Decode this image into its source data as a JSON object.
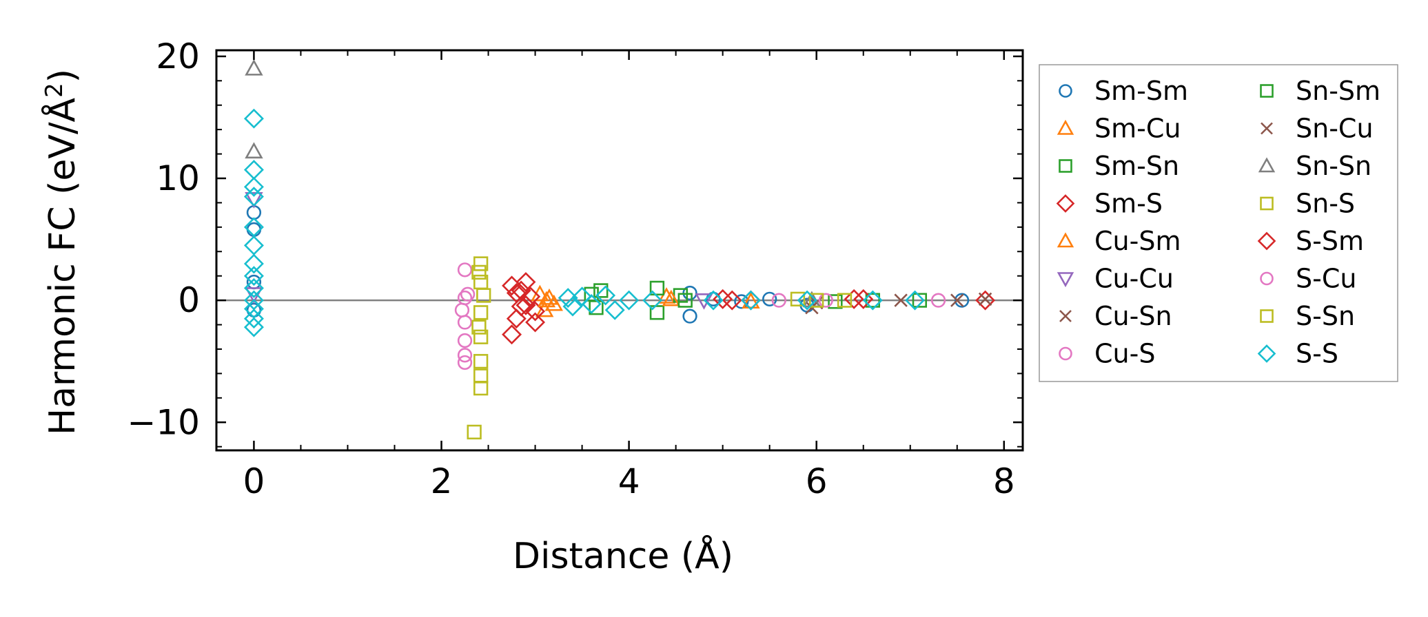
{
  "chart_data": {
    "type": "scatter",
    "xlabel": "Distance (Å)",
    "ylabel_main": "Harmonic FC (eV/Å",
    "ylabel_sup": "2",
    "ylabel_close": ")",
    "xlim": [
      -0.4,
      8.2
    ],
    "ylim": [
      -12.3,
      20.5
    ],
    "xticks": [
      0,
      2,
      4,
      6,
      8
    ],
    "xtick_labels": [
      "0",
      "2",
      "4",
      "6",
      "8"
    ],
    "yticks": [
      -10,
      0,
      10,
      20
    ],
    "ytick_labels": [
      "−10",
      "0",
      "10",
      "20"
    ],
    "reference_line_y": 0,
    "legend_position": "outside-right",
    "series": [
      {
        "name": "Sm-Sm",
        "color": "#1f77b4",
        "marker": "circle",
        "points": [
          [
            0,
            7.2
          ],
          [
            0,
            5.8
          ],
          [
            0,
            1.5
          ],
          [
            0,
            -0.8
          ],
          [
            4.65,
            0.6
          ],
          [
            4.65,
            -1.3
          ],
          [
            4.9,
            0.1
          ],
          [
            5.2,
            -0.1
          ],
          [
            5.5,
            0.1
          ],
          [
            5.9,
            -0.4
          ],
          [
            7.55,
            0.0
          ]
        ]
      },
      {
        "name": "Sm-Cu",
        "color": "#ff7f0e",
        "marker": "triangle-up",
        "points": [
          [
            3.05,
            0.5
          ],
          [
            3.1,
            -0.8
          ],
          [
            3.15,
            0.2
          ],
          [
            4.4,
            0.3
          ],
          [
            5.3,
            -0.1
          ]
        ]
      },
      {
        "name": "Sm-Sn",
        "color": "#2ca02c",
        "marker": "square",
        "points": [
          [
            3.6,
            0.5
          ],
          [
            3.65,
            -0.6
          ],
          [
            4.3,
            1.0
          ],
          [
            4.3,
            -1.0
          ],
          [
            4.55,
            0.4
          ],
          [
            6.2,
            -0.1
          ],
          [
            7.1,
            0.0
          ]
        ]
      },
      {
        "name": "Sm-S",
        "color": "#d62728",
        "marker": "diamond",
        "points": [
          [
            2.75,
            1.2
          ],
          [
            2.75,
            -2.8
          ],
          [
            2.8,
            -1.5
          ],
          [
            2.85,
            0.8
          ],
          [
            2.9,
            -0.4
          ],
          [
            2.95,
            0.3
          ],
          [
            3.0,
            -0.9
          ],
          [
            5.0,
            0.1
          ],
          [
            5.3,
            0.0
          ],
          [
            6.4,
            0.1
          ],
          [
            7.8,
            0.0
          ]
        ]
      },
      {
        "name": "Cu-Sm",
        "color": "#ff7f0e",
        "marker": "triangle-up",
        "points": [
          [
            3.12,
            0.0
          ],
          [
            3.2,
            -0.3
          ],
          [
            4.45,
            0.1
          ]
        ]
      },
      {
        "name": "Cu-Cu",
        "color": "#9467bd",
        "marker": "triangle-down",
        "points": [
          [
            0,
            8.3
          ],
          [
            0,
            0.5
          ],
          [
            4.8,
            0.0
          ]
        ]
      },
      {
        "name": "Cu-Sn",
        "color": "#8c564b",
        "marker": "x",
        "points": [
          [
            5.95,
            -0.6
          ],
          [
            7.5,
            0.0
          ],
          [
            7.8,
            0.1
          ]
        ]
      },
      {
        "name": "Cu-S",
        "color": "#e377c2",
        "marker": "circle",
        "points": [
          [
            2.25,
            2.5
          ],
          [
            2.25,
            0.2
          ],
          [
            2.25,
            -1.8
          ],
          [
            2.25,
            -3.3
          ],
          [
            2.25,
            -4.5
          ],
          [
            2.25,
            -5.1
          ],
          [
            5.6,
            0.0
          ],
          [
            7.3,
            0.0
          ]
        ]
      },
      {
        "name": "Sn-Sm",
        "color": "#2ca02c",
        "marker": "square",
        "points": [
          [
            3.7,
            0.8
          ],
          [
            4.6,
            0.0
          ],
          [
            6.6,
            0.0
          ]
        ]
      },
      {
        "name": "Sn-Cu",
        "color": "#8c564b",
        "marker": "x",
        "points": [
          [
            6.0,
            -0.2
          ],
          [
            6.9,
            0.0
          ]
        ]
      },
      {
        "name": "Sn-Sn",
        "color": "#7f7f7f",
        "marker": "triangle-up",
        "points": [
          [
            0,
            19.0
          ],
          [
            0,
            12.2
          ],
          [
            5.95,
            0.0
          ]
        ]
      },
      {
        "name": "Sn-S",
        "color": "#bcbd22",
        "marker": "square",
        "points": [
          [
            2.35,
            -10.8
          ],
          [
            2.42,
            3.0
          ],
          [
            2.42,
            1.5
          ],
          [
            2.42,
            -1.0
          ],
          [
            2.42,
            -3.0
          ],
          [
            2.42,
            -5.0
          ],
          [
            2.42,
            -6.2
          ],
          [
            2.42,
            -7.2
          ],
          [
            5.8,
            0.1
          ],
          [
            6.3,
            0.0
          ]
        ]
      },
      {
        "name": "S-Sm",
        "color": "#d62728",
        "marker": "diamond",
        "points": [
          [
            2.8,
            0.6
          ],
          [
            2.85,
            -0.5
          ],
          [
            2.9,
            1.5
          ],
          [
            3.0,
            -1.8
          ],
          [
            5.1,
            0.0
          ],
          [
            6.5,
            0.1
          ]
        ]
      },
      {
        "name": "S-Cu",
        "color": "#e377c2",
        "marker": "circle",
        "points": [
          [
            2.22,
            -0.8
          ],
          [
            2.28,
            0.5
          ],
          [
            6.1,
            0.0
          ]
        ]
      },
      {
        "name": "S-Sn",
        "color": "#bcbd22",
        "marker": "square",
        "points": [
          [
            2.4,
            2.3
          ],
          [
            2.4,
            -2.2
          ],
          [
            2.45,
            0.4
          ],
          [
            6.0,
            0.0
          ]
        ]
      },
      {
        "name": "S-S",
        "color": "#17becf",
        "marker": "diamond",
        "points": [
          [
            0,
            14.9
          ],
          [
            0,
            10.7
          ],
          [
            0,
            9.3
          ],
          [
            0,
            8.5
          ],
          [
            0,
            6.0
          ],
          [
            0,
            4.5
          ],
          [
            0,
            3.0
          ],
          [
            0,
            2.0
          ],
          [
            0,
            1.0
          ],
          [
            0,
            0.0
          ],
          [
            0,
            -0.7
          ],
          [
            0,
            -1.5
          ],
          [
            0,
            -2.2
          ],
          [
            3.35,
            0.2
          ],
          [
            3.4,
            -0.5
          ],
          [
            3.5,
            0.3
          ],
          [
            3.6,
            -0.3
          ],
          [
            3.75,
            0.4
          ],
          [
            3.85,
            -0.8
          ],
          [
            4.0,
            0.0
          ],
          [
            4.25,
            0.0
          ],
          [
            4.9,
            0.0
          ],
          [
            5.3,
            0.0
          ],
          [
            5.9,
            0.0
          ],
          [
            6.6,
            0.0
          ],
          [
            7.05,
            0.0
          ]
        ]
      }
    ]
  }
}
